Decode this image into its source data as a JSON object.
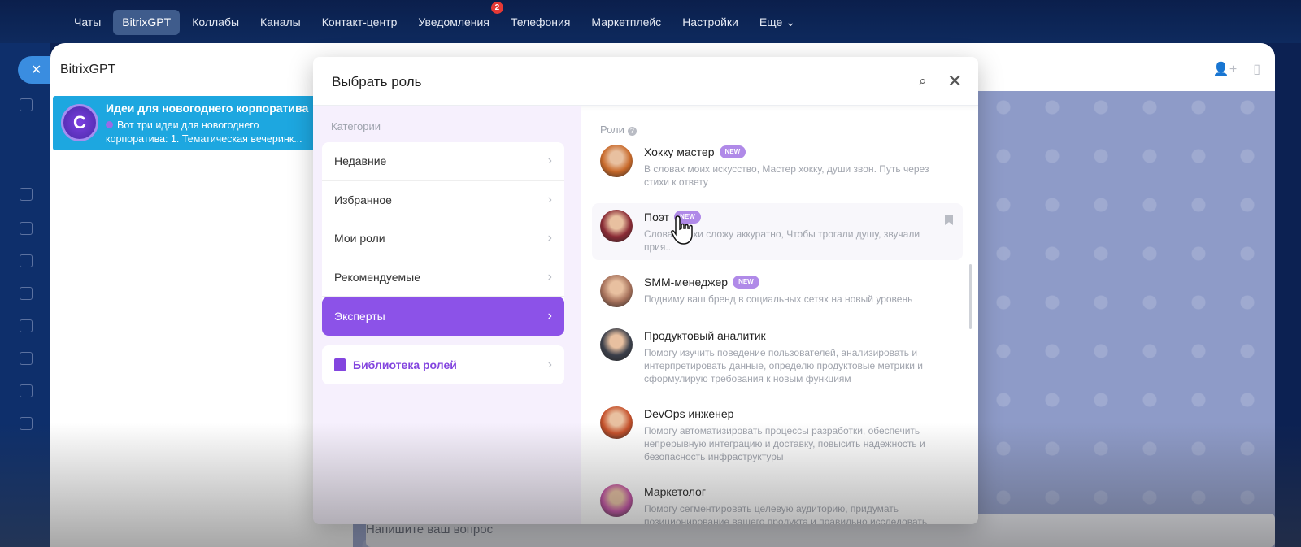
{
  "topnav": {
    "items": [
      {
        "label": "Чаты"
      },
      {
        "label": "BitrixGPT",
        "active": true
      },
      {
        "label": "Коллабы"
      },
      {
        "label": "Каналы"
      },
      {
        "label": "Контакт-центр"
      },
      {
        "label": "Уведомления",
        "badge": "2"
      },
      {
        "label": "Телефония"
      },
      {
        "label": "Маркетплейс"
      },
      {
        "label": "Настройки"
      },
      {
        "label": "Еще ⌄"
      }
    ]
  },
  "gpt_panel": {
    "title": "BitrixGPT",
    "chat": {
      "title": "Идеи для новогоднего корпоратива",
      "preview": "Вот три идеи для новогоднего корпоратива: 1. Тематическая вечеринк..."
    }
  },
  "chat": {
    "input_placeholder": "Напишите ваш вопрос"
  },
  "modal": {
    "title": "Выбрать роль",
    "categories_label": "Категории",
    "categories": [
      {
        "label": "Недавние"
      },
      {
        "label": "Избранное"
      },
      {
        "label": "Мои роли"
      },
      {
        "label": "Рекомендуемые"
      },
      {
        "label": "Эксперты",
        "active": true
      }
    ],
    "library_label": "Библиотека ролей",
    "roles_label": "Роли",
    "roles": [
      {
        "name": "Хокку мастер",
        "badge": "NEW",
        "desc": "В словах моих искусство, Мастер хокку, души звон. Путь через стихи к ответу",
        "color": "#c8692a"
      },
      {
        "name": "Поэт",
        "badge": "NEW",
        "desc": "Слова, стихи сложу аккуратно, Чтобы трогали душу, звучали прия...",
        "color": "#8a2b35"
      },
      {
        "name": "SMM-менеджер",
        "badge": "NEW",
        "desc": "Подниму ваш бренд в социальных сетях на новый уровень",
        "color": "#a5705a"
      },
      {
        "name": "Продуктовый аналитик",
        "desc": "Помогу изучить поведение пользователей, анализировать и интерпретировать данные, определю продуктовые метрики и сформулирую требования к новым функциям",
        "color": "#3b3f4a"
      },
      {
        "name": "DevOps инженер",
        "desc": "Помогу автоматизировать процессы разработки, обеспечить непрерывную интеграцию и доставку, повысить надежность и безопасность инфраструктуры",
        "color": "#c5502a"
      },
      {
        "name": "Маркетолог",
        "desc": "Помогу сегментировать целевую аудиторию, придумать позиционирование вашего продукта и правильно исследовать",
        "color": "#c04aa0"
      }
    ]
  },
  "colors": {
    "accent": "#8c52e8",
    "topbar": "#0b1f4c",
    "chat_selected": "#1da7e0",
    "badge": "#e53935"
  }
}
